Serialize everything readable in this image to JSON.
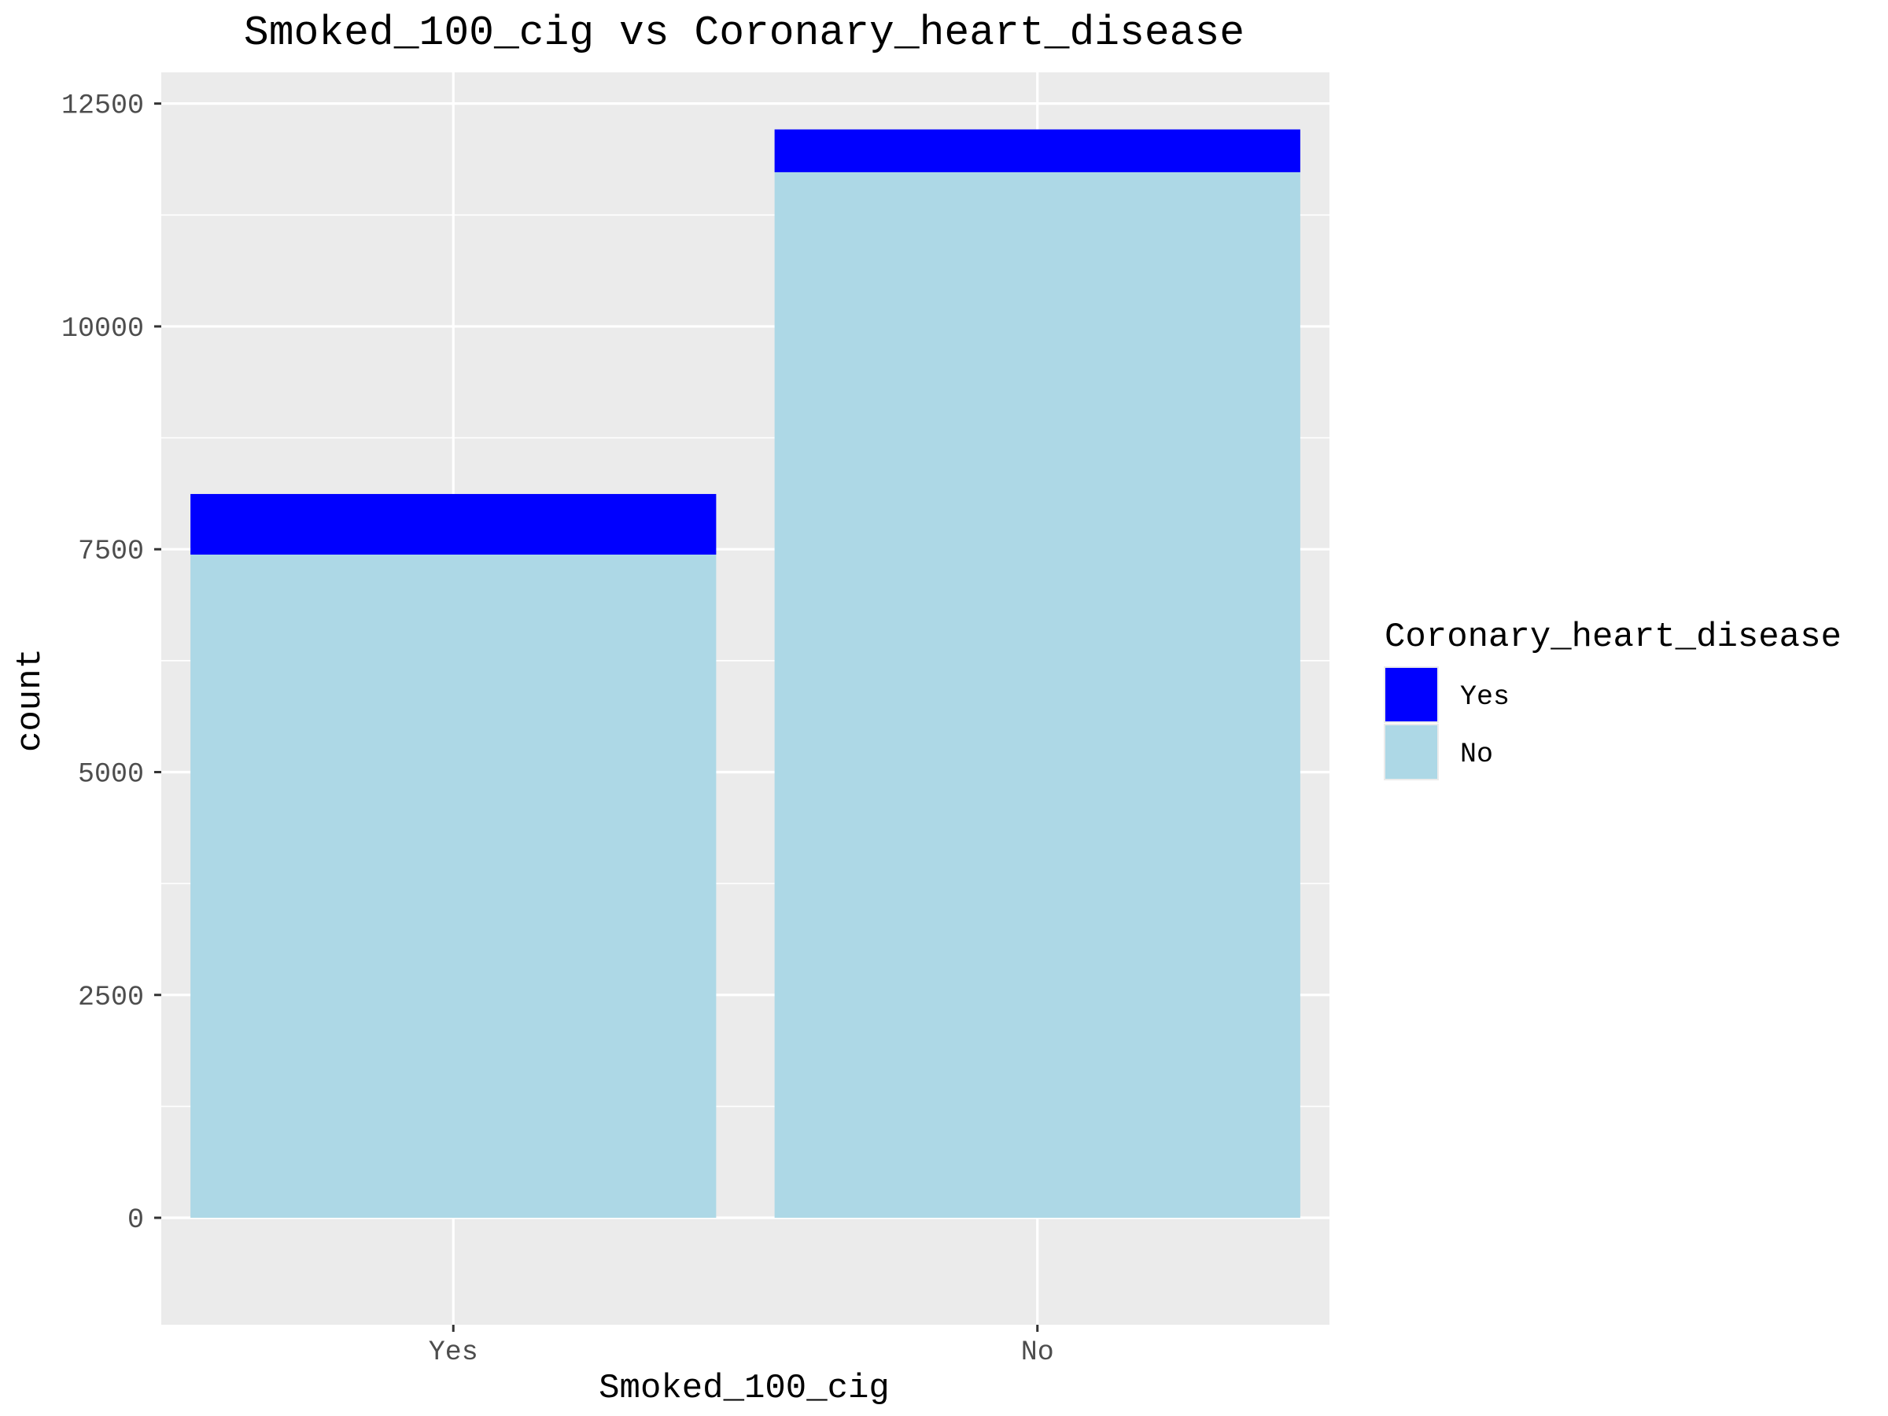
{
  "chart_data": {
    "type": "bar",
    "stacked": true,
    "title": "Smoked_100_cig vs Coronary_heart_disease",
    "xlabel": "Smoked_100_cig",
    "ylabel": "count",
    "categories": [
      "Yes",
      "No"
    ],
    "series": [
      {
        "name": "No",
        "values": [
          7440,
          11730
        ],
        "color": "#ADD8E6"
      },
      {
        "name": "Yes",
        "values": [
          680,
          480
        ],
        "color": "#0000FF"
      }
    ],
    "ylim": [
      -1200,
      12850
    ],
    "yticks": [
      0,
      2500,
      5000,
      7500,
      10000,
      12500
    ],
    "ytick_labels": [
      "0",
      "2500",
      "5000",
      "7500",
      "10000",
      "12500"
    ],
    "grid": true,
    "panel_background": "#EBEBEB",
    "grid_color": "#FFFFFF",
    "legend": {
      "title": "Coronary_heart_disease",
      "placement": "right",
      "entries": [
        {
          "label": "Yes",
          "color": "#0000FF"
        },
        {
          "label": "No",
          "color": "#ADD8E6"
        }
      ]
    }
  }
}
